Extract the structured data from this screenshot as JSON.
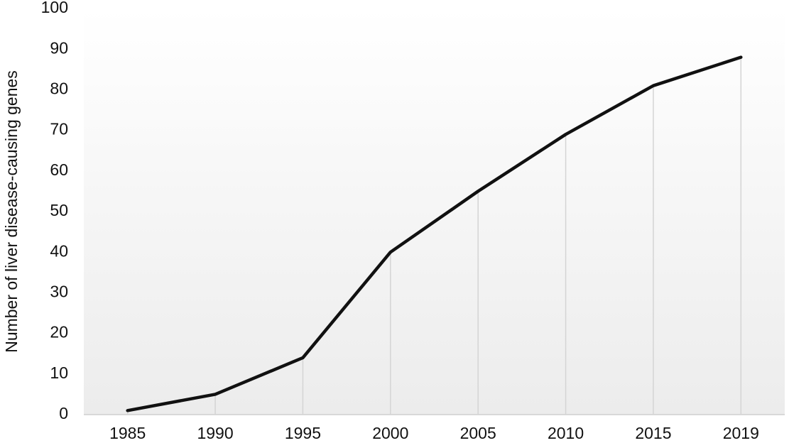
{
  "chart_data": {
    "type": "line",
    "y_label": "Number of liver disease-causing genes",
    "categories": [
      "1985",
      "1990",
      "1995",
      "2000",
      "2005",
      "2010",
      "2015",
      "2019"
    ],
    "series": [
      {
        "name": null,
        "color": "#111111",
        "values": [
          1,
          5,
          14,
          40,
          55,
          69,
          81,
          88
        ]
      }
    ],
    "ylim": [
      0,
      100
    ],
    "yticks": [
      0,
      10,
      20,
      30,
      40,
      50,
      60,
      70,
      80,
      90,
      100
    ],
    "drop_lines": true,
    "drop_line_color": "#d4d4d4"
  }
}
